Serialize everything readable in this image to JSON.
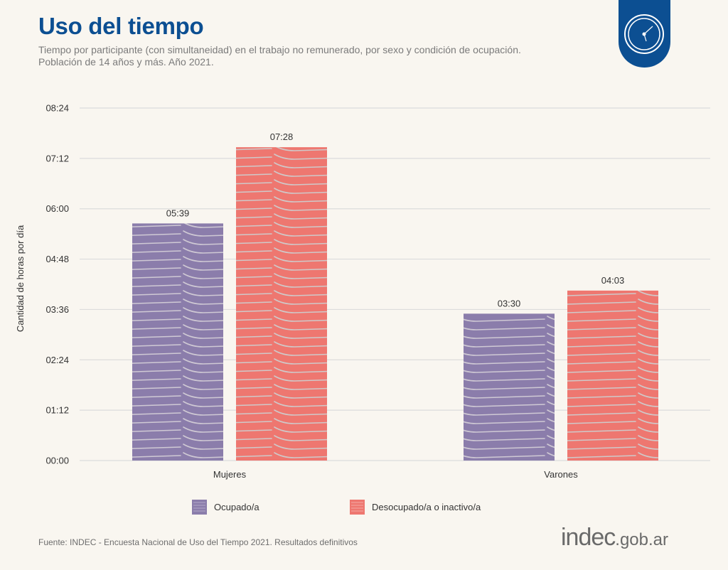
{
  "header": {
    "title": "Uso del tiempo",
    "subtitle_line1": "Tiempo por participante (con simultaneidad) en el trabajo no remunerado, por sexo y condición de ocupación.",
    "subtitle_line2": "Población de 14 años y más. Año 2021.",
    "badge_icon": "clock-icon"
  },
  "footer": {
    "source": "Fuente: INDEC - Encuesta Nacional de Uso del Tiempo 2021. Resultados definitivos",
    "logo_main": "indec",
    "logo_suffix": ".gob.ar"
  },
  "colors": {
    "brand": "#0c4f92",
    "ocupado": "#8b7dab",
    "desocupado": "#ee7770",
    "stripe": "#c9c6c8",
    "grid": "#dcdcdc",
    "background": "#f9f6f0"
  },
  "chart_data": {
    "type": "bar",
    "title": "Uso del tiempo",
    "xlabel": "",
    "ylabel": "Cantidad de horas por día",
    "categories": [
      "Mujeres",
      "Varones"
    ],
    "series": [
      {
        "name": "Ocupado/a",
        "values": [
          339,
          210
        ],
        "labels": [
          "05:39",
          "03:30"
        ]
      },
      {
        "name": "Desocupado/a o inactivo/a",
        "values": [
          448,
          243
        ],
        "labels": [
          "07:28",
          "04:03"
        ]
      }
    ],
    "value_units": "minutes",
    "ylim": [
      0,
      504
    ],
    "yticks": [
      0,
      72,
      144,
      216,
      288,
      360,
      432,
      504
    ],
    "ytick_labels": [
      "00:00",
      "01:12",
      "02:24",
      "03:36",
      "04:48",
      "06:00",
      "07:12",
      "08:24"
    ],
    "grid": true,
    "legend_position": "bottom"
  }
}
